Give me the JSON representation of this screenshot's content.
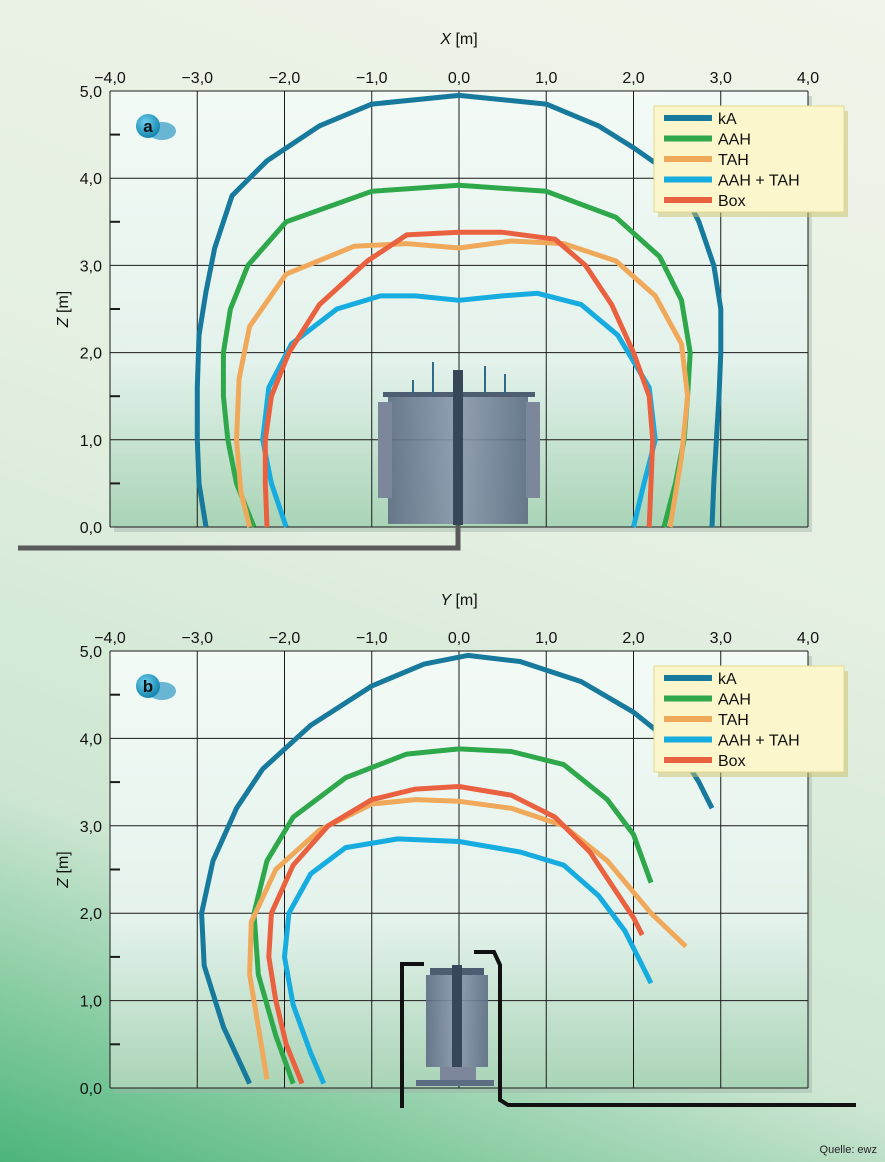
{
  "credit": "Quelle: ewz",
  "colors": {
    "kA": "#17799b",
    "AAH": "#2ea84a",
    "TAH": "#f0a95a",
    "AAH + TAH": "#17ace0",
    "Box": "#ea6140"
  },
  "chart_data": [
    {
      "type": "line",
      "panel_label": "a",
      "xlabel": "X [m]",
      "ylabel": "Z [m]",
      "xlim": [
        -4.0,
        4.0
      ],
      "ylim": [
        0.0,
        5.0
      ],
      "x_ticks": [
        "−4,0",
        "−3,0",
        "−2,0",
        "−1,0",
        "0,0",
        "1,0",
        "2,0",
        "3,0",
        "4,0"
      ],
      "y_ticks": [
        "0,0",
        "1,0",
        "2,0",
        "3,0",
        "4,0",
        "5,0"
      ],
      "grid": true,
      "legend_position": "top-right",
      "series": [
        {
          "name": "kA",
          "points": [
            [
              -2.9,
              0.0
            ],
            [
              -2.98,
              0.5
            ],
            [
              -3.0,
              1.0
            ],
            [
              -3.0,
              1.6
            ],
            [
              -2.98,
              2.2
            ],
            [
              -2.9,
              2.7
            ],
            [
              -2.8,
              3.2
            ],
            [
              -2.6,
              3.8
            ],
            [
              -2.2,
              4.2
            ],
            [
              -1.6,
              4.6
            ],
            [
              -1.0,
              4.85
            ],
            [
              0.0,
              4.95
            ],
            [
              1.0,
              4.85
            ],
            [
              1.6,
              4.6
            ],
            [
              2.0,
              4.35
            ],
            [
              2.5,
              4.0
            ],
            [
              2.75,
              3.5
            ],
            [
              2.92,
              3.0
            ],
            [
              3.0,
              2.5
            ],
            [
              3.0,
              2.0
            ],
            [
              2.98,
              1.5
            ],
            [
              2.95,
              1.0
            ],
            [
              2.92,
              0.5
            ],
            [
              2.9,
              0.0
            ]
          ]
        },
        {
          "name": "AAH",
          "points": [
            [
              -2.35,
              0.0
            ],
            [
              -2.55,
              0.5
            ],
            [
              -2.65,
              1.0
            ],
            [
              -2.7,
              1.5
            ],
            [
              -2.7,
              2.0
            ],
            [
              -2.62,
              2.5
            ],
            [
              -2.42,
              3.0
            ],
            [
              -1.98,
              3.5
            ],
            [
              -1.0,
              3.85
            ],
            [
              0.0,
              3.92
            ],
            [
              1.0,
              3.85
            ],
            [
              1.8,
              3.55
            ],
            [
              2.3,
              3.1
            ],
            [
              2.55,
              2.6
            ],
            [
              2.65,
              2.0
            ],
            [
              2.62,
              1.5
            ],
            [
              2.58,
              1.0
            ],
            [
              2.48,
              0.5
            ],
            [
              2.35,
              0.0
            ]
          ]
        },
        {
          "name": "TAH",
          "points": [
            [
              -2.4,
              0.0
            ],
            [
              -2.5,
              0.4
            ],
            [
              -2.55,
              1.0
            ],
            [
              -2.52,
              1.7
            ],
            [
              -2.4,
              2.3
            ],
            [
              -1.98,
              2.9
            ],
            [
              -1.2,
              3.22
            ],
            [
              -0.6,
              3.25
            ],
            [
              0.0,
              3.2
            ],
            [
              0.6,
              3.28
            ],
            [
              1.2,
              3.25
            ],
            [
              1.8,
              3.05
            ],
            [
              2.25,
              2.65
            ],
            [
              2.55,
              2.1
            ],
            [
              2.62,
              1.5
            ],
            [
              2.55,
              0.8
            ],
            [
              2.42,
              0.0
            ]
          ]
        },
        {
          "name": "AAH + TAH",
          "points": [
            [
              -1.98,
              0.0
            ],
            [
              -2.15,
              0.5
            ],
            [
              -2.25,
              1.0
            ],
            [
              -2.18,
              1.6
            ],
            [
              -1.92,
              2.1
            ],
            [
              -1.4,
              2.5
            ],
            [
              -0.9,
              2.65
            ],
            [
              -0.5,
              2.65
            ],
            [
              0.0,
              2.6
            ],
            [
              0.5,
              2.65
            ],
            [
              0.9,
              2.68
            ],
            [
              1.4,
              2.55
            ],
            [
              1.82,
              2.2
            ],
            [
              2.18,
              1.6
            ],
            [
              2.25,
              1.0
            ],
            [
              2.12,
              0.5
            ],
            [
              2.0,
              0.0
            ]
          ]
        },
        {
          "name": "Box",
          "points": [
            [
              -2.2,
              0.0
            ],
            [
              -2.22,
              0.5
            ],
            [
              -2.22,
              1.0
            ],
            [
              -2.15,
              1.5
            ],
            [
              -1.95,
              2.0
            ],
            [
              -1.6,
              2.55
            ],
            [
              -1.05,
              3.05
            ],
            [
              -0.6,
              3.35
            ],
            [
              0.0,
              3.38
            ],
            [
              0.5,
              3.38
            ],
            [
              1.1,
              3.3
            ],
            [
              1.45,
              3.0
            ],
            [
              1.75,
              2.55
            ],
            [
              2.0,
              2.0
            ],
            [
              2.18,
              1.5
            ],
            [
              2.22,
              1.0
            ],
            [
              2.2,
              0.5
            ],
            [
              2.18,
              0.0
            ]
          ]
        }
      ]
    },
    {
      "type": "line",
      "panel_label": "b",
      "xlabel": "Y [m]",
      "ylabel": "Z [m]",
      "xlim": [
        -4.0,
        4.0
      ],
      "ylim": [
        0.0,
        5.0
      ],
      "x_ticks": [
        "−4,0",
        "−3,0",
        "−2,0",
        "−1,0",
        "0,0",
        "1,0",
        "2,0",
        "3,0",
        "4,0"
      ],
      "y_ticks": [
        "0,0",
        "1,0",
        "2,0",
        "3,0",
        "4,0",
        "5,0"
      ],
      "grid": true,
      "legend_position": "top-right",
      "series": [
        {
          "name": "kA",
          "points": [
            [
              -2.4,
              0.05
            ],
            [
              -2.7,
              0.7
            ],
            [
              -2.92,
              1.4
            ],
            [
              -2.95,
              2.0
            ],
            [
              -2.82,
              2.6
            ],
            [
              -2.55,
              3.2
            ],
            [
              -2.25,
              3.65
            ],
            [
              -1.7,
              4.15
            ],
            [
              -1.0,
              4.6
            ],
            [
              -0.4,
              4.85
            ],
            [
              0.1,
              4.95
            ],
            [
              0.7,
              4.88
            ],
            [
              1.4,
              4.65
            ],
            [
              2.0,
              4.3
            ],
            [
              2.5,
              3.9
            ],
            [
              2.75,
              3.5
            ],
            [
              2.9,
              3.2
            ]
          ]
        },
        {
          "name": "AAH",
          "points": [
            [
              -1.9,
              0.05
            ],
            [
              -2.1,
              0.6
            ],
            [
              -2.3,
              1.3
            ],
            [
              -2.35,
              2.0
            ],
            [
              -2.2,
              2.6
            ],
            [
              -1.9,
              3.1
            ],
            [
              -1.3,
              3.55
            ],
            [
              -0.6,
              3.82
            ],
            [
              0.0,
              3.88
            ],
            [
              0.6,
              3.85
            ],
            [
              1.2,
              3.7
            ],
            [
              1.7,
              3.3
            ],
            [
              2.0,
              2.9
            ],
            [
              2.2,
              2.35
            ]
          ]
        },
        {
          "name": "TAH",
          "points": [
            [
              -2.2,
              0.1
            ],
            [
              -2.3,
              0.7
            ],
            [
              -2.4,
              1.3
            ],
            [
              -2.38,
              1.9
            ],
            [
              -2.1,
              2.5
            ],
            [
              -1.6,
              2.95
            ],
            [
              -1.0,
              3.25
            ],
            [
              -0.5,
              3.3
            ],
            [
              0.0,
              3.28
            ],
            [
              0.6,
              3.2
            ],
            [
              1.2,
              3.0
            ],
            [
              1.7,
              2.6
            ],
            [
              2.2,
              2.0
            ],
            [
              2.6,
              1.62
            ]
          ]
        },
        {
          "name": "AAH + TAH",
          "points": [
            [
              -1.55,
              0.05
            ],
            [
              -1.7,
              0.4
            ],
            [
              -1.9,
              0.95
            ],
            [
              -2.0,
              1.5
            ],
            [
              -1.95,
              2.0
            ],
            [
              -1.7,
              2.45
            ],
            [
              -1.3,
              2.75
            ],
            [
              -0.7,
              2.85
            ],
            [
              0.0,
              2.82
            ],
            [
              0.7,
              2.7
            ],
            [
              1.2,
              2.55
            ],
            [
              1.6,
              2.2
            ],
            [
              1.9,
              1.8
            ],
            [
              2.05,
              1.5
            ],
            [
              2.2,
              1.2
            ]
          ]
        },
        {
          "name": "Box",
          "points": [
            [
              -1.8,
              0.05
            ],
            [
              -1.98,
              0.5
            ],
            [
              -2.1,
              1.0
            ],
            [
              -2.18,
              1.5
            ],
            [
              -2.15,
              2.0
            ],
            [
              -1.9,
              2.55
            ],
            [
              -1.5,
              3.0
            ],
            [
              -1.0,
              3.3
            ],
            [
              -0.5,
              3.42
            ],
            [
              0.0,
              3.45
            ],
            [
              0.6,
              3.35
            ],
            [
              1.1,
              3.1
            ],
            [
              1.5,
              2.7
            ],
            [
              1.8,
              2.25
            ],
            [
              2.0,
              1.95
            ],
            [
              2.1,
              1.75
            ]
          ]
        }
      ]
    }
  ]
}
